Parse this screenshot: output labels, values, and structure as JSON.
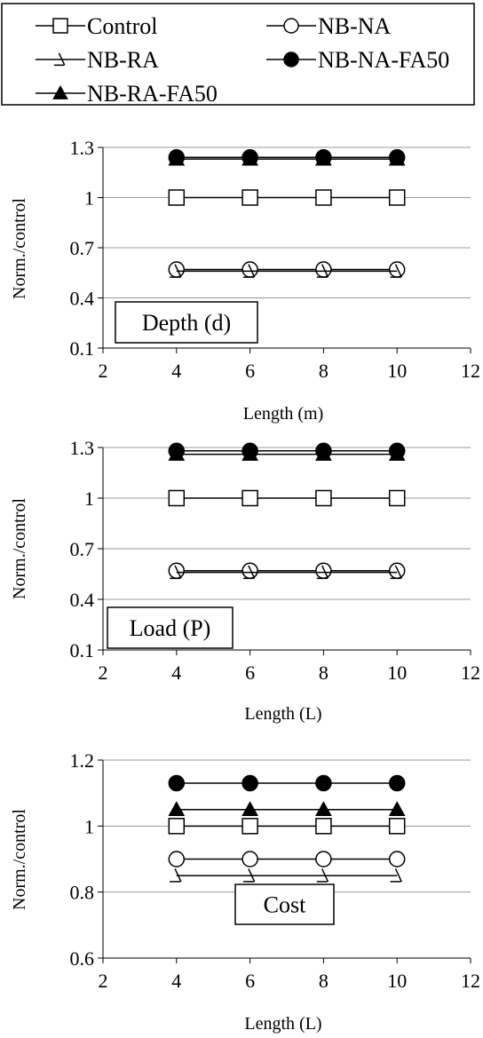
{
  "legend": {
    "entries": [
      {
        "name": "Control",
        "marker": "square-open"
      },
      {
        "name": "NB-NA",
        "marker": "circle-open"
      },
      {
        "name": "NB-RA",
        "marker": "triangle-open"
      },
      {
        "name": "NB-NA-FA50",
        "marker": "circle-filled"
      },
      {
        "name": "NB-RA-FA50",
        "marker": "triangle-filled"
      }
    ]
  },
  "chart_data": [
    {
      "type": "line",
      "annotation": "Depth (d)",
      "xlabel": "Length (m)",
      "ylabel": "Norm./control",
      "xlim": [
        2,
        12
      ],
      "ylim": [
        0.1,
        1.3
      ],
      "xticks": [
        2,
        4,
        6,
        8,
        10,
        12
      ],
      "yticks": [
        0.1,
        0.4,
        0.7,
        1,
        1.3
      ],
      "grid": "horizontal",
      "x": [
        4,
        6,
        8,
        10
      ],
      "series": [
        {
          "name": "Control",
          "values": [
            1,
            1,
            1,
            1
          ]
        },
        {
          "name": "NB-NA",
          "values": [
            0.57,
            0.57,
            0.57,
            0.57
          ]
        },
        {
          "name": "NB-RA",
          "values": [
            0.56,
            0.56,
            0.56,
            0.56
          ]
        },
        {
          "name": "NB-NA-FA50",
          "values": [
            1.24,
            1.24,
            1.24,
            1.24
          ]
        },
        {
          "name": "NB-RA-FA50",
          "values": [
            1.23,
            1.23,
            1.23,
            1.23
          ]
        }
      ]
    },
    {
      "type": "line",
      "annotation": "Load (P)",
      "xlabel": "Length (L)",
      "ylabel": "Norm./control",
      "xlim": [
        2,
        12
      ],
      "ylim": [
        0.1,
        1.3
      ],
      "xticks": [
        2,
        4,
        6,
        8,
        10,
        12
      ],
      "yticks": [
        0.1,
        0.4,
        0.7,
        1,
        1.3
      ],
      "grid": "horizontal",
      "x": [
        4,
        6,
        8,
        10
      ],
      "series": [
        {
          "name": "Control",
          "values": [
            1,
            1,
            1,
            1
          ]
        },
        {
          "name": "NB-NA",
          "values": [
            0.57,
            0.57,
            0.57,
            0.57
          ]
        },
        {
          "name": "NB-RA",
          "values": [
            0.56,
            0.56,
            0.56,
            0.56
          ]
        },
        {
          "name": "NB-NA-FA50",
          "values": [
            1.28,
            1.28,
            1.28,
            1.28
          ]
        },
        {
          "name": "NB-RA-FA50",
          "values": [
            1.26,
            1.26,
            1.26,
            1.26
          ]
        }
      ]
    },
    {
      "type": "line",
      "annotation": "Cost",
      "xlabel": "Length (L)",
      "ylabel": "Norm./control",
      "xlim": [
        2,
        12
      ],
      "ylim": [
        0.6,
        1.2
      ],
      "xticks": [
        2,
        4,
        6,
        8,
        10,
        12
      ],
      "yticks": [
        0.6,
        0.8,
        1,
        1.2
      ],
      "grid": "horizontal",
      "x": [
        4,
        6,
        8,
        10
      ],
      "series": [
        {
          "name": "Control",
          "values": [
            1,
            1,
            1,
            1
          ]
        },
        {
          "name": "NB-NA",
          "values": [
            0.9,
            0.9,
            0.9,
            0.9
          ]
        },
        {
          "name": "NB-RA",
          "values": [
            0.85,
            0.85,
            0.85,
            0.85
          ]
        },
        {
          "name": "NB-NA-FA50",
          "values": [
            1.13,
            1.13,
            1.13,
            1.13
          ]
        },
        {
          "name": "NB-RA-FA50",
          "values": [
            1.05,
            1.05,
            1.05,
            1.05
          ]
        }
      ]
    }
  ]
}
